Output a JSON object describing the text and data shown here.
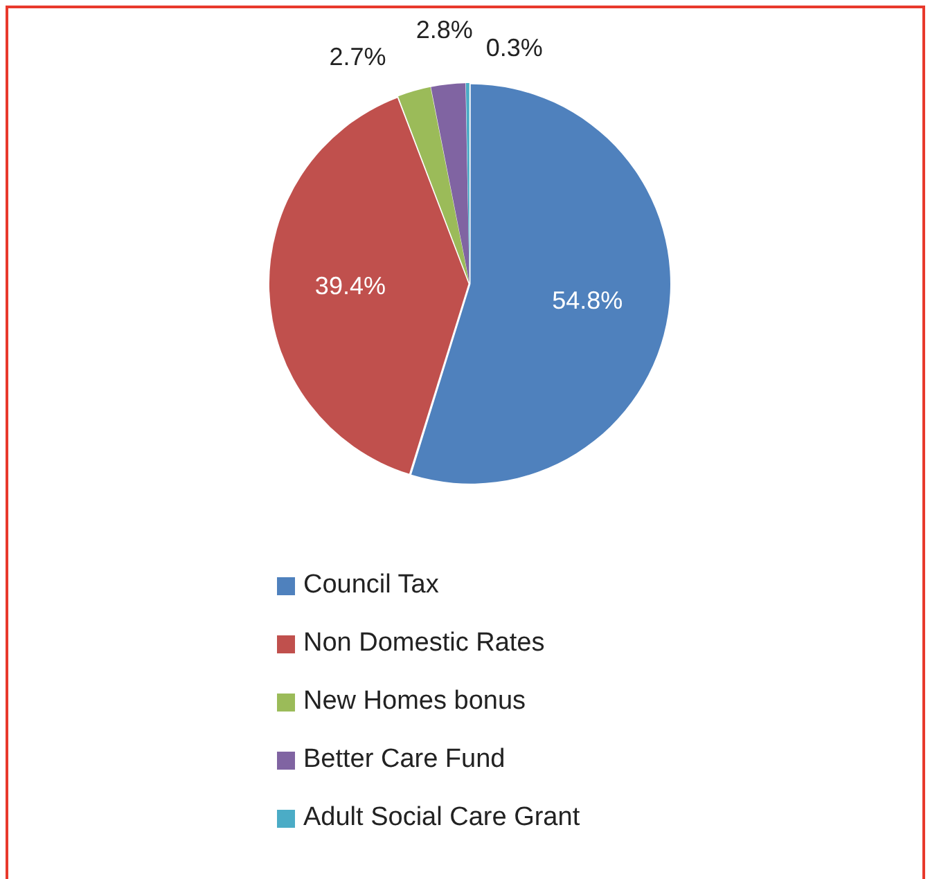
{
  "chart_data": {
    "type": "pie",
    "categories": [
      "Council Tax",
      "Non Domestic Rates",
      "New Homes bonus",
      "Better Care Fund",
      "Adult Social Care Grant"
    ],
    "values": [
      54.8,
      39.4,
      2.7,
      2.8,
      0.3
    ],
    "value_labels": [
      "54.8%",
      "39.4%",
      "2.7%",
      "2.8%",
      "0.3%"
    ],
    "colors": [
      "#4f81bd",
      "#c0504d",
      "#9bbb59",
      "#8064a2",
      "#4bacc6"
    ],
    "legend": "bottom"
  }
}
